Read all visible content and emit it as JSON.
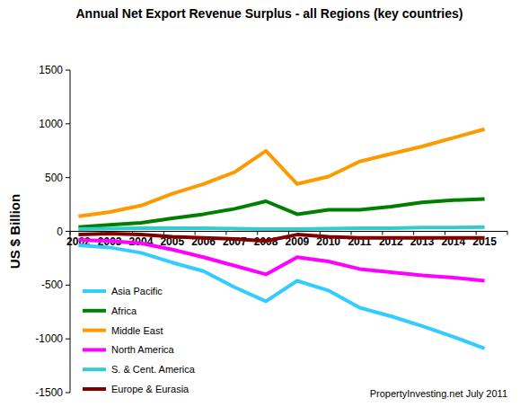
{
  "chart_data": {
    "type": "line",
    "title": "Annual Net Export Revenue Surplus -  all Regions (key countries)",
    "y_label": "US $ Billion",
    "annotation": "PropertyInvesting.net  July 2011",
    "categories": [
      "2002",
      "2003",
      "2004",
      "2005",
      "2006",
      "2007",
      "2008",
      "2009",
      "2010",
      "2011",
      "2012",
      "2013",
      "2014",
      "2015"
    ],
    "series": [
      {
        "name": "Asia Pacific",
        "color": "#33ccff",
        "values": [
          -130,
          -150,
          -200,
          -290,
          -370,
          -520,
          -650,
          -460,
          -550,
          -710,
          -790,
          -880,
          -980,
          -1090
        ]
      },
      {
        "name": "Africa",
        "color": "#008000",
        "values": [
          40,
          60,
          80,
          120,
          160,
          210,
          280,
          160,
          200,
          200,
          230,
          270,
          290,
          300
        ]
      },
      {
        "name": "Middle East",
        "color": "#ff9900",
        "values": [
          140,
          180,
          240,
          350,
          440,
          550,
          750,
          440,
          510,
          650,
          720,
          790,
          870,
          950
        ]
      },
      {
        "name": "North America",
        "color": "#ff00ff",
        "values": [
          -80,
          -90,
          -110,
          -170,
          -240,
          -320,
          -400,
          -240,
          -280,
          -350,
          -380,
          -410,
          -430,
          -460
        ]
      },
      {
        "name": "S. & Cent. America",
        "color": "#33cccc",
        "values": [
          20,
          25,
          30,
          30,
          30,
          25,
          20,
          20,
          25,
          30,
          30,
          35,
          35,
          40
        ]
      },
      {
        "name": "Europe & Eurasia",
        "color": "#800000",
        "values": [
          -30,
          -20,
          -30,
          -50,
          -60,
          -70,
          -90,
          -30,
          -50,
          -60,
          -60,
          -60,
          -60,
          -60
        ]
      }
    ],
    "ylim": [
      -1500,
      1500
    ],
    "yticks": [
      -1500,
      -1000,
      -500,
      0,
      500,
      1000,
      1500
    ],
    "grid": false,
    "legend": "lower left"
  }
}
